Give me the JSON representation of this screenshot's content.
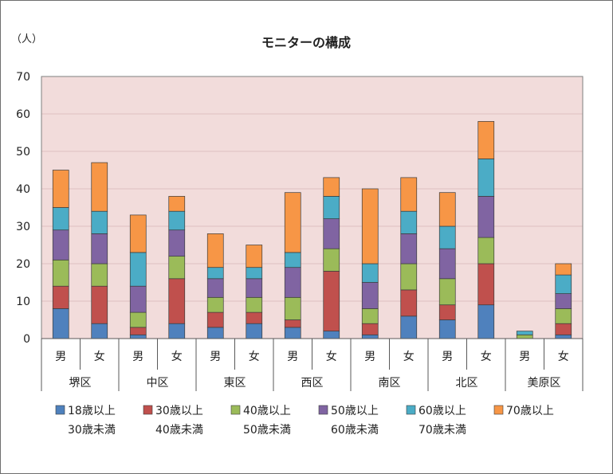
{
  "chart_data": {
    "type": "bar",
    "stacked": true,
    "title": "モニターの構成",
    "ylabel": "（人）",
    "ylim": [
      0,
      70
    ],
    "yticks": [
      0,
      10,
      20,
      30,
      40,
      50,
      60,
      70
    ],
    "grid": true,
    "plot_background": "#f2dcdb",
    "legend_position": "bottom",
    "districts": [
      "堺区",
      "中区",
      "東区",
      "西区",
      "南区",
      "北区",
      "美原区"
    ],
    "categories": [
      "男",
      "女",
      "男",
      "女",
      "男",
      "女",
      "男",
      "女",
      "男",
      "女",
      "男",
      "女",
      "男",
      "女"
    ],
    "series": [
      {
        "name": "18歳以上",
        "name2": "30歳未満",
        "color": "#4f81bd",
        "values": [
          8,
          4,
          1,
          4,
          3,
          4,
          3,
          2,
          1,
          6,
          5,
          9,
          0,
          1
        ]
      },
      {
        "name": "30歳以上",
        "name2": "40歳未満",
        "color": "#c0504d",
        "values": [
          6,
          10,
          2,
          12,
          4,
          3,
          2,
          16,
          3,
          7,
          4,
          11,
          0,
          3
        ]
      },
      {
        "name": "40歳以上",
        "name2": "50歳未満",
        "color": "#9bbb59",
        "values": [
          7,
          6,
          4,
          6,
          4,
          4,
          6,
          6,
          4,
          7,
          7,
          7,
          1,
          4
        ]
      },
      {
        "name": "50歳以上",
        "name2": "60歳未満",
        "color": "#8064a2",
        "values": [
          8,
          8,
          7,
          7,
          5,
          5,
          8,
          8,
          7,
          8,
          8,
          11,
          0,
          4
        ]
      },
      {
        "name": "60歳以上",
        "name2": "70歳未満",
        "color": "#4bacc6",
        "values": [
          6,
          6,
          9,
          5,
          3,
          3,
          4,
          6,
          5,
          6,
          6,
          10,
          1,
          5
        ]
      },
      {
        "name": "70歳以上",
        "name2": "",
        "color": "#f79646",
        "values": [
          10,
          13,
          10,
          4,
          9,
          6,
          16,
          5,
          20,
          9,
          9,
          10,
          0,
          3
        ]
      }
    ]
  }
}
